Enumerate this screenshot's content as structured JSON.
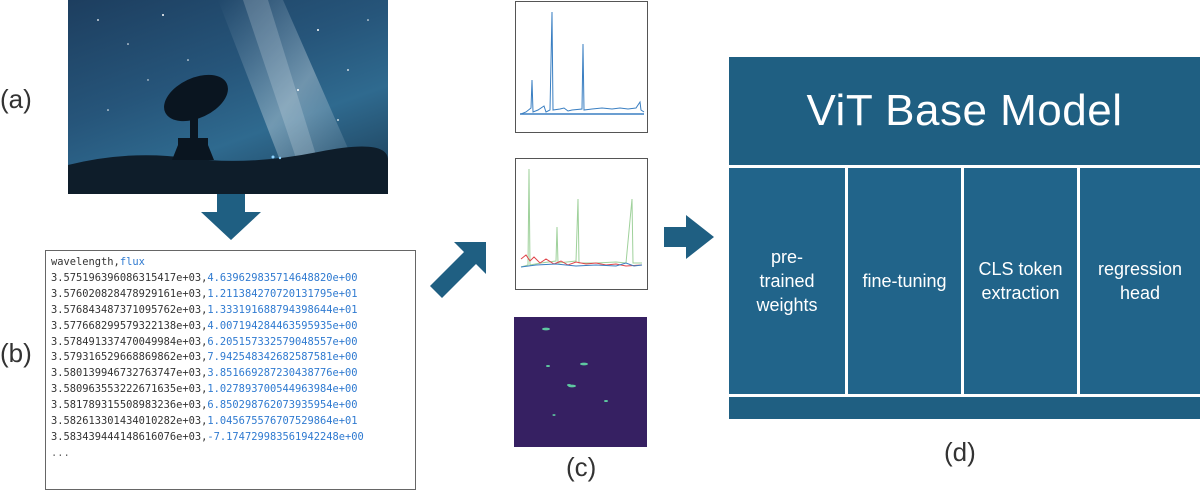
{
  "labels": {
    "a": "(a)",
    "b": "(b)",
    "c": "(c)",
    "d": "(d)"
  },
  "photo": {
    "icon": "radio-telescope-night-sky"
  },
  "csv": {
    "header_w": "wavelength,",
    "header_f": "flux",
    "rows": [
      {
        "w": "3.575196396086315417e+03,",
        "f": "4.639629835714648820e+00"
      },
      {
        "w": "3.576020828478929161e+03,",
        "f": "1.211384270720131795e+01"
      },
      {
        "w": "3.576843487371095762e+03,",
        "f": "1.333191688794398644e+01"
      },
      {
        "w": "3.577668299579322138e+03,",
        "f": "4.007194284463595935e+00"
      },
      {
        "w": "3.578491337470049984e+03,",
        "f": "6.205157332579048557e+00"
      },
      {
        "w": "3.579316529668869862e+03,",
        "f": "7.942548342682587581e+00"
      },
      {
        "w": "3.580139946732763747e+03,",
        "f": "3.851669287230438776e+00"
      },
      {
        "w": "3.580963553222671635e+03,",
        "f": "1.027893700544963984e+00"
      },
      {
        "w": "3.581789315508983236e+03,",
        "f": "6.850298762073935954e+00"
      },
      {
        "w": "3.582613301434010282e+03,",
        "f": "1.045675576707529864e+01"
      },
      {
        "w": "3.583439444148616076e+03,",
        "f": "-7.174729983561942248e+00"
      }
    ],
    "ellipsis": "..."
  },
  "vit": {
    "title": "ViT Base Model",
    "cells": [
      {
        "l1": "pre-",
        "l2": "trained",
        "l3": "weights"
      },
      {
        "l1": "fine-tuning"
      },
      {
        "l1": "CLS token",
        "l2": "extraction"
      },
      {
        "l1": "regression",
        "l2": "head"
      }
    ]
  },
  "colors": {
    "arrow": "#1f5f82",
    "vit_bg": "#1f5f82",
    "spectrum_blue": "#3a7fc2",
    "spectrum_red": "#e0444a",
    "spectrum_green": "#7fc17a",
    "heatmap_bg": "#3a1a5a"
  }
}
